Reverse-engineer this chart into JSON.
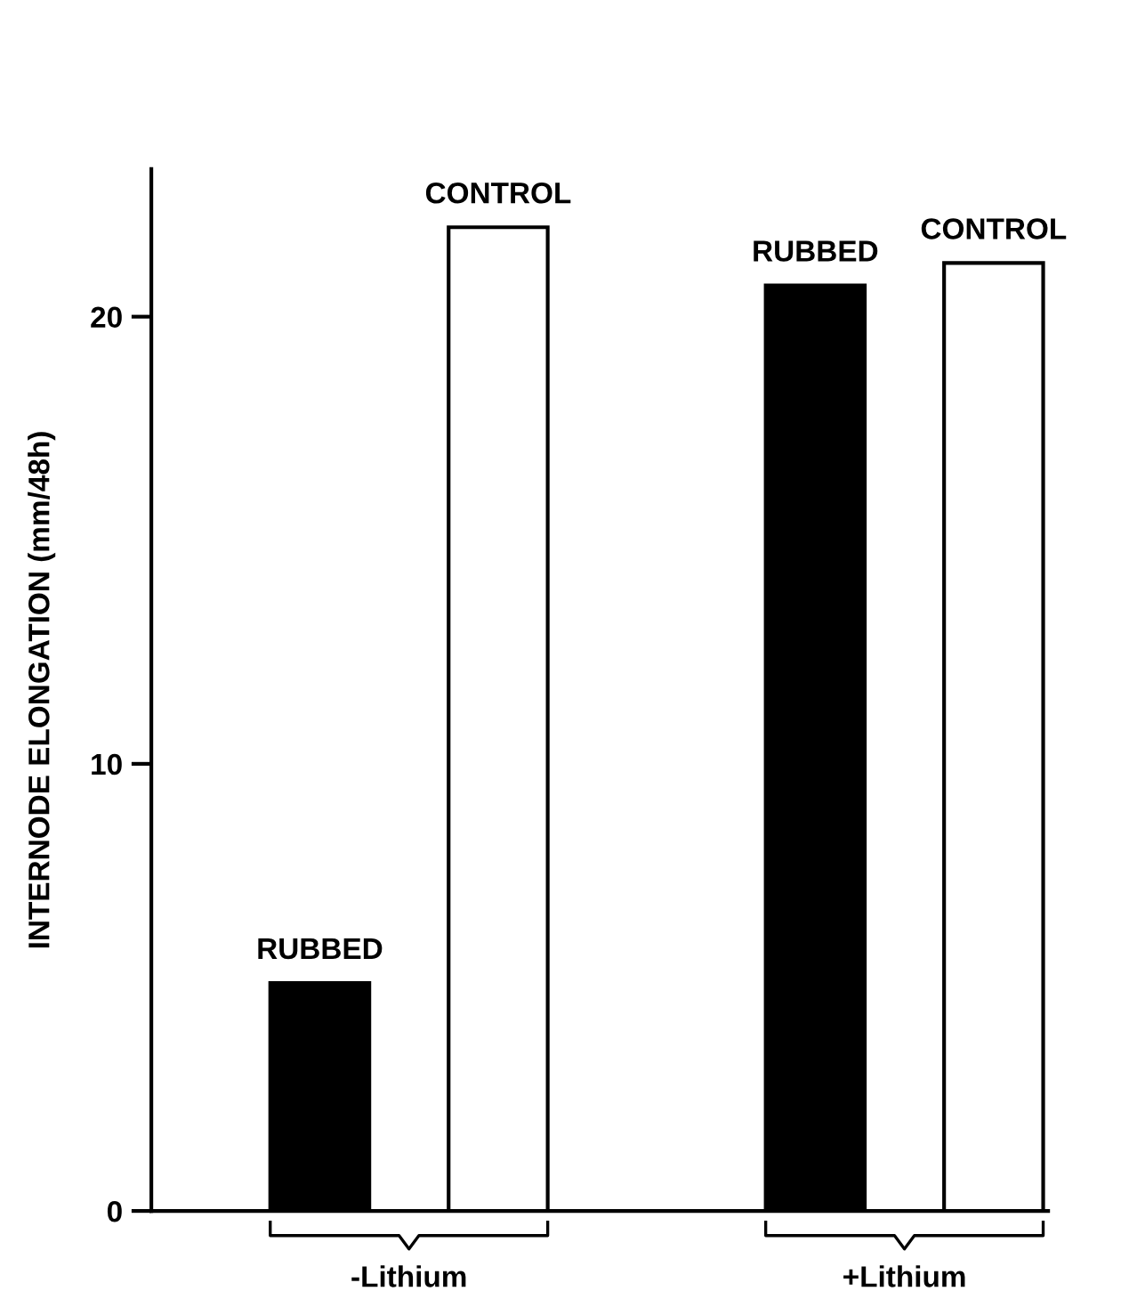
{
  "chart_data": {
    "type": "bar",
    "ylabel": "INTERNODE ELONGATION (mm/48h)",
    "categories": [
      "-Lithium",
      "+Lithium"
    ],
    "series": [
      {
        "name": "RUBBED",
        "color": "#000000",
        "values": [
          5.1,
          20.7
        ]
      },
      {
        "name": "CONTROL",
        "color": "#ffffff",
        "values": [
          22.0,
          21.2
        ]
      }
    ],
    "ylim": [
      0,
      23.3
    ],
    "yticks": [
      0,
      10,
      20
    ],
    "grid": false,
    "legend": false
  }
}
